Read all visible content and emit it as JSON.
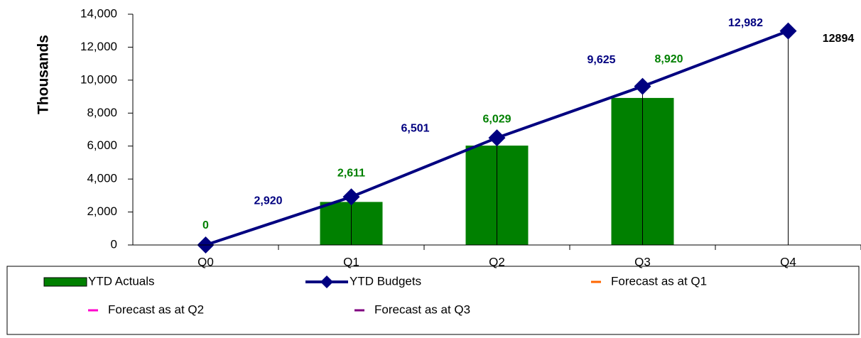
{
  "chart_data": {
    "type": "bar",
    "y_label": "Thousands",
    "categories": [
      "Q0",
      "Q1",
      "Q2",
      "Q3",
      "Q4"
    ],
    "series": [
      {
        "name": "YTD Actuals",
        "type": "bar",
        "color": "#008000",
        "values": [
          0,
          2611,
          6029,
          8920,
          null
        ],
        "value_labels": [
          "0",
          "2,611",
          "6,029",
          "8,920",
          null
        ]
      },
      {
        "name": "YTD Budgets",
        "type": "line",
        "color": "#000080",
        "values": [
          0,
          2920,
          6501,
          9625,
          12982
        ],
        "value_labels": [
          null,
          "2,920",
          "6,501",
          "9,625",
          "12,982"
        ]
      },
      {
        "name": "Forecast as at Q1",
        "type": "line",
        "color": "#ff6600",
        "values": [
          null,
          null,
          null,
          null,
          null
        ]
      },
      {
        "name": "Forecast as at Q2",
        "type": "line",
        "color": "#ff00cc",
        "values": [
          null,
          null,
          null,
          null,
          null
        ]
      },
      {
        "name": "Forecast as at Q3",
        "type": "line",
        "color": "#800080",
        "values": [
          null,
          null,
          null,
          null,
          null
        ]
      }
    ],
    "annotations": [
      "12894"
    ],
    "ylim": [
      0,
      14000
    ],
    "yticks": [
      0,
      {
        "value": 2000,
        "label": "2,000"
      },
      {
        "value": 4000,
        "label": "4,000"
      },
      {
        "value": 6000,
        "label": "6,000"
      },
      {
        "value": 8000,
        "label": "8,000"
      },
      {
        "value": 10000,
        "label": "10,000"
      },
      {
        "value": 12000,
        "label": "12,000"
      },
      {
        "value": 14000,
        "label": "14,000"
      }
    ],
    "grid": false,
    "legend": "bottom"
  }
}
